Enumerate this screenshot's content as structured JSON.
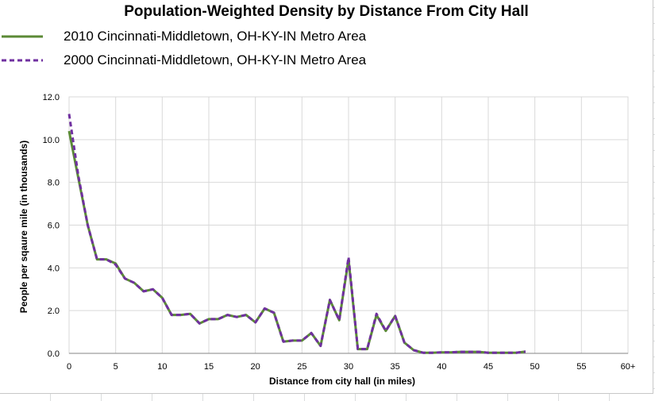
{
  "chart_data": {
    "type": "line",
    "title": "Population-Weighted Density by Distance From City Hall",
    "xlabel": "Distance from city hall (in miles)",
    "ylabel": "People per sqaure mile (in thousands)",
    "x_tick_labels": [
      "0",
      "5",
      "10",
      "15",
      "20",
      "25",
      "30",
      "35",
      "40",
      "45",
      "50",
      "55",
      "60+"
    ],
    "y_tick_labels": [
      "0.0",
      "2.0",
      "4.0",
      "6.0",
      "8.0",
      "10.0",
      "12.0"
    ],
    "xlim": [
      0,
      60
    ],
    "ylim": [
      0,
      12
    ],
    "grid": "horizontal and vertical",
    "legend_position": "top-left",
    "x": [
      0,
      1,
      2,
      3,
      4,
      5,
      6,
      7,
      8,
      9,
      10,
      11,
      12,
      13,
      14,
      15,
      16,
      17,
      18,
      19,
      20,
      21,
      22,
      23,
      24,
      25,
      26,
      27,
      28,
      29,
      30,
      31,
      32,
      33,
      34,
      35,
      36,
      37,
      38,
      39,
      40,
      41,
      42,
      43,
      44,
      45,
      46,
      47,
      48,
      49
    ],
    "series": [
      {
        "name": "2010 Cincinnati-Middletown, OH-KY-IN Metro Area",
        "color": "#5b8a36",
        "style": "solid",
        "values": [
          10.4,
          8.2,
          6.0,
          4.4,
          4.4,
          4.2,
          3.5,
          3.3,
          2.9,
          3.0,
          2.6,
          1.8,
          1.8,
          1.85,
          1.4,
          1.6,
          1.6,
          1.8,
          1.7,
          1.8,
          1.45,
          2.1,
          1.9,
          0.55,
          0.6,
          0.6,
          0.95,
          0.35,
          2.5,
          1.55,
          4.4,
          0.2,
          0.2,
          1.8,
          1.05,
          1.75,
          0.5,
          0.15,
          0.03,
          0.03,
          0.05,
          0.05,
          0.07,
          0.07,
          0.07,
          0.03,
          0.03,
          0.03,
          0.03,
          0.08
        ]
      },
      {
        "name": "2000 Cincinnati-Middletown, OH-KY-IN Metro Area",
        "color": "#7030a0",
        "style": "dashed",
        "values": [
          11.2,
          8.3,
          6.0,
          4.4,
          4.4,
          4.15,
          3.5,
          3.3,
          2.9,
          3.0,
          2.6,
          1.8,
          1.8,
          1.85,
          1.4,
          1.6,
          1.6,
          1.8,
          1.7,
          1.8,
          1.45,
          2.1,
          1.9,
          0.55,
          0.6,
          0.6,
          0.95,
          0.35,
          2.5,
          1.55,
          4.5,
          0.2,
          0.2,
          1.85,
          1.05,
          1.75,
          0.5,
          0.15,
          0.03,
          0.03,
          0.05,
          0.05,
          0.07,
          0.07,
          0.07,
          0.03,
          0.03,
          0.03,
          0.03,
          0.08
        ]
      }
    ]
  }
}
